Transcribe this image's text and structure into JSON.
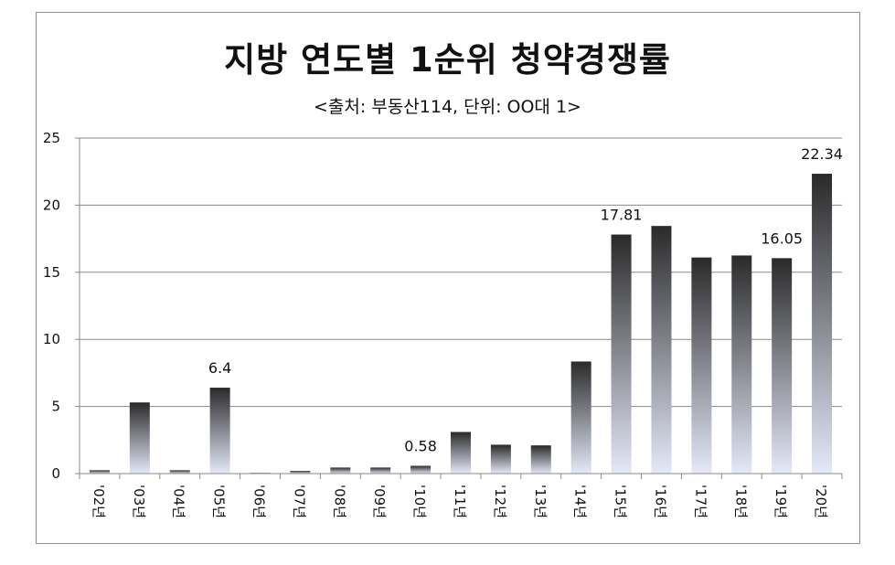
{
  "chart_data": {
    "type": "bar",
    "title": "지방 연도별 1순위 청약경쟁률",
    "subtitle": "<출처: 부동산114, 단위: OO대 1>",
    "categories": [
      "'02년",
      "'03년",
      "'04년",
      "'05년",
      "'06년",
      "'07년",
      "'08년",
      "'09년",
      "'10년",
      "'11년",
      "'12년",
      "'13년",
      "'14년",
      "'15년",
      "'16년",
      "'17년",
      "'18년",
      "'19년",
      "'20년"
    ],
    "values": [
      0.25,
      5.3,
      0.25,
      6.4,
      0.05,
      0.2,
      0.45,
      0.45,
      0.58,
      3.1,
      2.15,
      2.1,
      8.35,
      17.81,
      18.45,
      16.1,
      16.25,
      16.05,
      22.34
    ],
    "data_labels": {
      "3": "6.4",
      "8": "0.58",
      "13": "17.81",
      "17": "16.05",
      "18": "22.34"
    },
    "ylim": [
      0,
      25
    ],
    "yticks": [
      0,
      5,
      10,
      15,
      20,
      25
    ],
    "grid": true,
    "bar_gradient": [
      "#2a2a2a",
      "#e4e8f8"
    ]
  }
}
